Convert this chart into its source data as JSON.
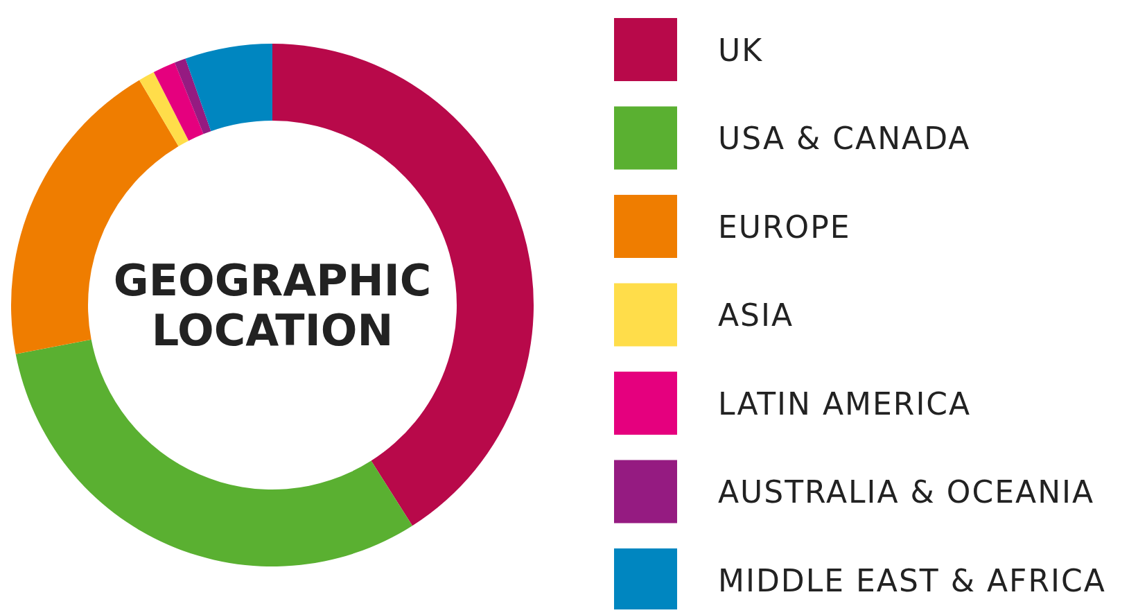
{
  "chart_data": {
    "type": "donut",
    "title": "GEOGRAPHIC LOCATION",
    "categories": [
      "UK",
      "USA & CANADA",
      "EUROPE",
      "ASIA",
      "LATIN AMERICA",
      "AUSTRALIA & OCEANIA",
      "MIDDLE EAST & AFRICA"
    ],
    "values": [
      41,
      31,
      19.5,
      1,
      1.4,
      0.7,
      5.4
    ],
    "colors": [
      "#b8094a",
      "#5ab031",
      "#ef7d00",
      "#ffdd4a",
      "#e5007e",
      "#951b81",
      "#0086c0"
    ],
    "legend": "right"
  }
}
